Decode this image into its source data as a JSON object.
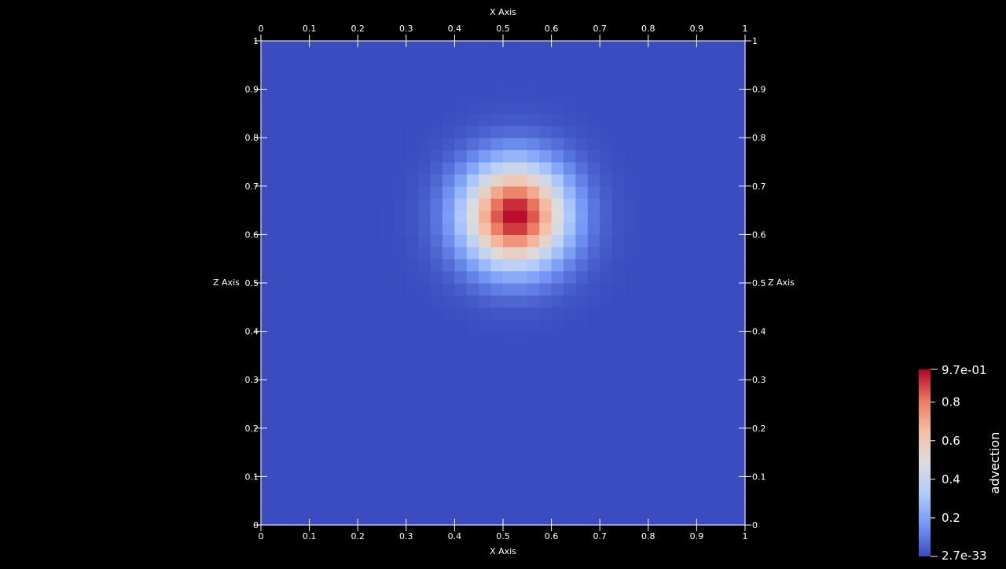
{
  "chart_data": {
    "type": "heatmap",
    "title": "",
    "x_axis": {
      "label": "X Axis",
      "range": [
        0,
        1
      ],
      "ticks": [
        "0",
        "0.1",
        "0.2",
        "0.3",
        "0.4",
        "0.5",
        "0.6",
        "0.7",
        "0.8",
        "0.9",
        "1"
      ]
    },
    "z_axis": {
      "label": "Z Axis",
      "range": [
        0,
        1
      ],
      "ticks": [
        "0",
        "0.1",
        "0.2",
        "0.3",
        "0.4",
        "0.5",
        "0.6",
        "0.7",
        "0.8",
        "0.9",
        "1"
      ]
    },
    "field": {
      "name": "advection",
      "grid_resolution": 40,
      "peak_center": [
        0.525,
        0.64
      ],
      "peak_sigma": 0.075,
      "max": 0.97,
      "min": 2.7e-33,
      "colormap": "Cool to Warm"
    },
    "color_legend": {
      "title": "advection",
      "max_label": "9.7e-01",
      "min_label": "2.7e-33",
      "labels": [
        "0.8",
        "0.6",
        "0.4",
        "0.2"
      ],
      "label_values": [
        0.8,
        0.6,
        0.4,
        0.2
      ],
      "colors": [
        "#3b4cc0",
        "#7396f5",
        "#b0cbfc",
        "#dcdddd",
        "#f6bfa6",
        "#ea7b60",
        "#b40426"
      ]
    },
    "background": "#000000",
    "axis_color": "#ffffff"
  }
}
